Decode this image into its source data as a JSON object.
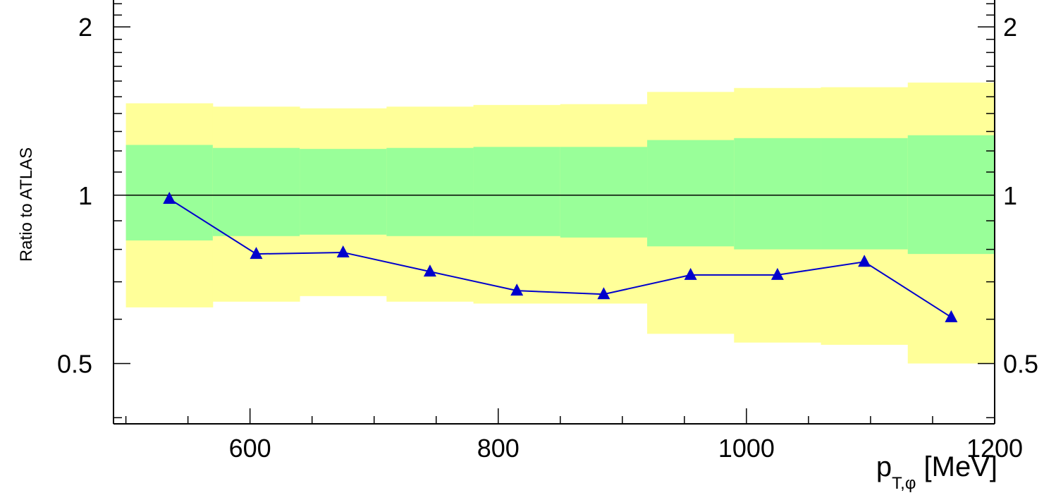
{
  "chart_data": {
    "type": "line",
    "xlabel": {
      "main": "p",
      "sub": "T,φ",
      "unit": "[MeV]"
    },
    "ylabel": "Ratio to ATLAS",
    "xlim": [
      490,
      1200
    ],
    "ylim": [
      0.39,
      2.3
    ],
    "y_scale": "log",
    "x_ticks": [
      600,
      800,
      1000,
      1200
    ],
    "y_ticks": [
      0.5,
      1,
      2
    ],
    "x_tick_labels": [
      "600",
      "800",
      "1000",
      "1200"
    ],
    "y_tick_labels": [
      "0.5",
      "1",
      "2"
    ],
    "reference_line": 1,
    "bands": {
      "bins": [
        [
          500,
          570
        ],
        [
          570,
          640
        ],
        [
          640,
          710
        ],
        [
          710,
          780
        ],
        [
          780,
          850
        ],
        [
          850,
          920
        ],
        [
          920,
          990
        ],
        [
          990,
          1060
        ],
        [
          1060,
          1130
        ],
        [
          1130,
          1200
        ]
      ],
      "outer_low": [
        0.63,
        0.645,
        0.66,
        0.645,
        0.64,
        0.64,
        0.565,
        0.545,
        0.54,
        0.5
      ],
      "outer_high": [
        1.46,
        1.44,
        1.43,
        1.44,
        1.45,
        1.455,
        1.53,
        1.555,
        1.56,
        1.59
      ],
      "inner_low": [
        0.83,
        0.845,
        0.85,
        0.845,
        0.845,
        0.84,
        0.81,
        0.8,
        0.8,
        0.785
      ],
      "inner_high": [
        1.23,
        1.215,
        1.21,
        1.215,
        1.22,
        1.22,
        1.255,
        1.265,
        1.265,
        1.28
      ],
      "outer_color": "#ffff99",
      "inner_color": "#99ff99"
    },
    "series": [
      {
        "x": [
          535,
          605,
          675,
          745,
          815,
          885,
          955,
          1025,
          1095,
          1165
        ],
        "values": [
          0.985,
          0.785,
          0.79,
          0.73,
          0.675,
          0.665,
          0.72,
          0.72,
          0.76,
          0.605
        ],
        "color": "#0000cc",
        "marker": "triangle"
      }
    ]
  }
}
